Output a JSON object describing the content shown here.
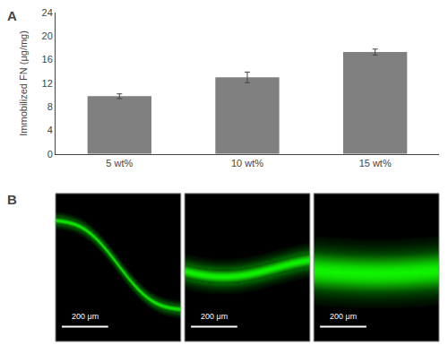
{
  "chart_data": {
    "type": "bar",
    "categories": [
      "5 wt%",
      "10 wt%",
      "15 wt%"
    ],
    "values": [
      9.8,
      13.0,
      17.3
    ],
    "errors": [
      0.4,
      0.9,
      0.5
    ],
    "color": "#808080",
    "ylabel": "Immobilized FN (μg/mg)",
    "ylim": [
      0,
      24
    ],
    "yticks": [
      0,
      4,
      8,
      12,
      16,
      20,
      24
    ],
    "panel_labels": [
      "A",
      "B"
    ],
    "scale_bar_text": "200 μm",
    "grid": false
  }
}
